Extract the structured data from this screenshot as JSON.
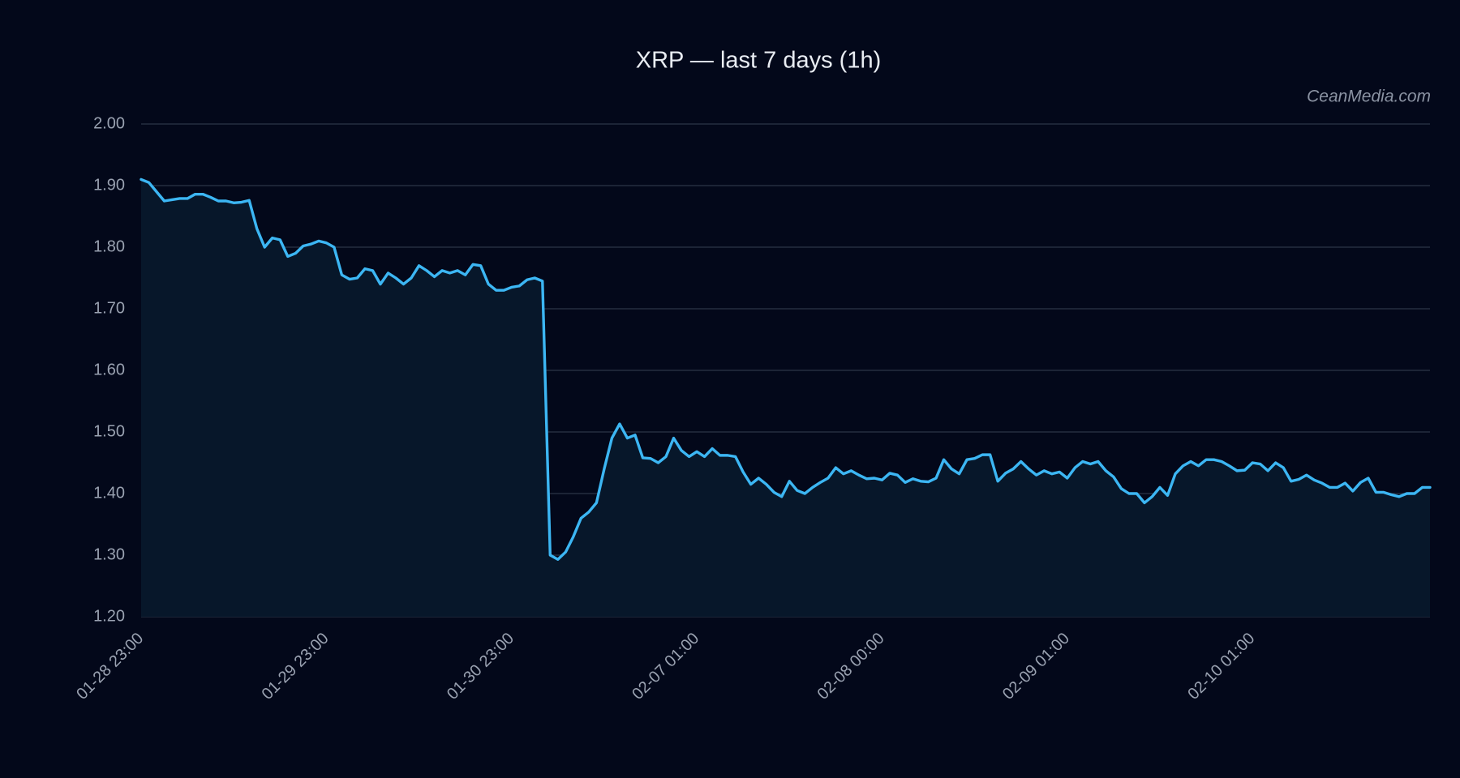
{
  "chart_data": {
    "type": "area",
    "title": "XRP — last 7 days (1h)",
    "watermark": "CeanMedia.com",
    "categories": [
      "01-28 23:00",
      null,
      null,
      null,
      null,
      null,
      null,
      null,
      null,
      null,
      null,
      null,
      null,
      null,
      null,
      null,
      null,
      null,
      null,
      null,
      null,
      null,
      null,
      null,
      "01-29 23:00",
      null,
      null,
      null,
      null,
      null,
      null,
      null,
      null,
      null,
      null,
      null,
      null,
      null,
      null,
      null,
      null,
      null,
      null,
      null,
      null,
      null,
      null,
      null,
      "01-30 23:00",
      null,
      null,
      null,
      null,
      null,
      null,
      null,
      null,
      null,
      null,
      null,
      null,
      null,
      null,
      null,
      null,
      null,
      null,
      null,
      null,
      null,
      null,
      null,
      "02-07 01:00",
      null,
      null,
      null,
      null,
      null,
      null,
      null,
      null,
      null,
      null,
      null,
      null,
      null,
      null,
      null,
      null,
      null,
      null,
      null,
      null,
      null,
      null,
      null,
      "02-08 00:00",
      null,
      null,
      null,
      null,
      null,
      null,
      null,
      null,
      null,
      null,
      null,
      null,
      null,
      null,
      null,
      null,
      null,
      null,
      null,
      null,
      null,
      null,
      null,
      "02-09 01:00",
      null,
      null,
      null,
      null,
      null,
      null,
      null,
      null,
      null,
      null,
      null,
      null,
      null,
      null,
      null,
      null,
      null,
      null,
      null,
      null,
      null,
      null,
      null,
      "02-10 01:00",
      null,
      null,
      null,
      null,
      null,
      null,
      null,
      null,
      null,
      null,
      null,
      null,
      null,
      null,
      null,
      null,
      null,
      null,
      null,
      null,
      null,
      null,
      null
    ],
    "values": [
      1.91,
      1.905,
      1.89,
      1.875,
      1.877,
      1.879,
      1.879,
      1.886,
      1.886,
      1.881,
      1.875,
      1.875,
      1.872,
      1.873,
      1.876,
      1.83,
      1.8,
      1.815,
      1.812,
      1.785,
      1.79,
      1.802,
      1.805,
      1.81,
      1.807,
      1.8,
      1.755,
      1.748,
      1.75,
      1.765,
      1.762,
      1.74,
      1.758,
      1.75,
      1.74,
      1.75,
      1.77,
      1.762,
      1.752,
      1.762,
      1.758,
      1.762,
      1.755,
      1.772,
      1.77,
      1.74,
      1.73,
      1.73,
      1.735,
      1.737,
      1.747,
      1.75,
      1.745,
      1.3,
      1.293,
      1.305,
      1.33,
      1.36,
      1.37,
      1.385,
      1.44,
      1.49,
      1.513,
      1.49,
      1.495,
      1.458,
      1.457,
      1.45,
      1.46,
      1.49,
      1.47,
      1.46,
      1.468,
      1.46,
      1.473,
      1.462,
      1.462,
      1.46,
      1.435,
      1.415,
      1.425,
      1.415,
      1.402,
      1.395,
      1.42,
      1.405,
      1.4,
      1.41,
      1.418,
      1.425,
      1.442,
      1.432,
      1.437,
      1.43,
      1.424,
      1.425,
      1.422,
      1.433,
      1.43,
      1.418,
      1.424,
      1.42,
      1.419,
      1.425,
      1.455,
      1.44,
      1.432,
      1.455,
      1.457,
      1.463,
      1.463,
      1.42,
      1.433,
      1.44,
      1.452,
      1.44,
      1.43,
      1.437,
      1.432,
      1.435,
      1.425,
      1.442,
      1.452,
      1.448,
      1.452,
      1.437,
      1.427,
      1.408,
      1.4,
      1.4,
      1.385,
      1.395,
      1.41,
      1.397,
      1.432,
      1.445,
      1.452,
      1.445,
      1.455,
      1.455,
      1.452,
      1.445,
      1.437,
      1.438,
      1.45,
      1.448,
      1.437,
      1.45,
      1.442,
      1.42,
      1.423,
      1.43,
      1.422,
      1.417,
      1.41,
      1.41,
      1.417,
      1.404,
      1.418,
      1.425,
      1.402,
      1.402,
      1.398,
      1.395,
      1.4,
      1.4,
      1.41,
      1.41
    ],
    "color": "#3cb6f3",
    "fill": "#07172a",
    "ylim": [
      1.2,
      2.0
    ],
    "yticks": [
      {
        "value": 1.2,
        "label": "1.20"
      },
      {
        "value": 1.3,
        "label": "1.30"
      },
      {
        "value": 1.4,
        "label": "1.40"
      },
      {
        "value": 1.5,
        "label": "1.50"
      },
      {
        "value": 1.6,
        "label": "1.60"
      },
      {
        "value": 1.7,
        "label": "1.70"
      },
      {
        "value": 1.8,
        "label": "1.80"
      },
      {
        "value": 1.9,
        "label": "1.90"
      },
      {
        "value": 2.0,
        "label": "2.00"
      }
    ],
    "grid": true
  }
}
